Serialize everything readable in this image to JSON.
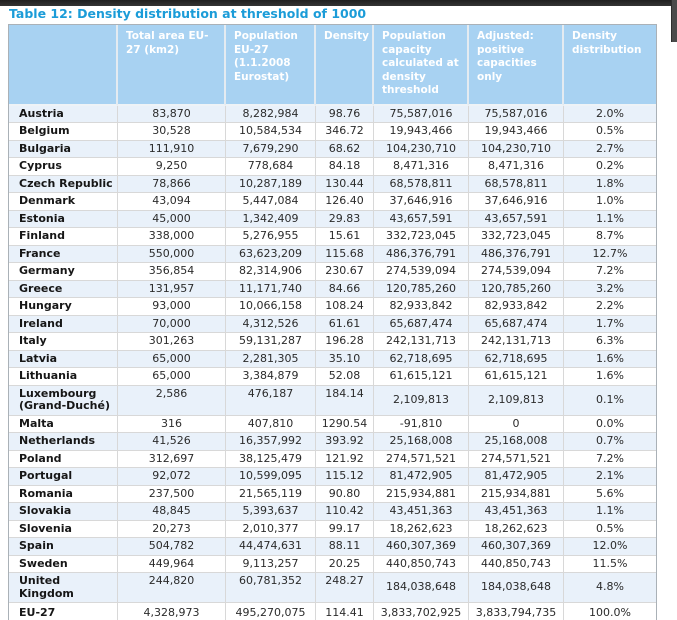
{
  "page": {
    "title": "Table 12: Density distribution at threshold of 1000"
  },
  "colors": {
    "title": "#1b9cd8",
    "header_bg": "#a8d2f2",
    "header_text": "#ffffff",
    "row_alt": "#e9f1fa",
    "border": "#d8d8d8",
    "text": "#2b2b2b",
    "top_bar": "#2a2a2a"
  },
  "table": {
    "columns": [
      "",
      "Total area EU-27 (km2)",
      "Population EU-27 (1.1.2008 Eurostat)",
      "Density",
      "Population capacity calculated at density threshold",
      "Adjusted: positive capacities only",
      "Density distribution"
    ],
    "rows": [
      {
        "country": "Austria",
        "values": [
          "83,870",
          "8,282,984",
          "98.76",
          "75,587,016",
          "75,587,016",
          "2.0%"
        ]
      },
      {
        "country": "Belgium",
        "values": [
          "30,528",
          "10,584,534",
          "346.72",
          "19,943,466",
          "19,943,466",
          "0.5%"
        ]
      },
      {
        "country": "Bulgaria",
        "values": [
          "111,910",
          "7,679,290",
          "68.62",
          "104,230,710",
          "104,230,710",
          "2.7%"
        ]
      },
      {
        "country": "Cyprus",
        "values": [
          "9,250",
          "778,684",
          "84.18",
          "8,471,316",
          "8,471,316",
          "0.2%"
        ]
      },
      {
        "country": "Czech Republic",
        "values": [
          "78,866",
          "10,287,189",
          "130.44",
          "68,578,811",
          "68,578,811",
          "1.8%"
        ]
      },
      {
        "country": "Denmark",
        "values": [
          "43,094",
          "5,447,084",
          "126.40",
          "37,646,916",
          "37,646,916",
          "1.0%"
        ]
      },
      {
        "country": "Estonia",
        "values": [
          "45,000",
          "1,342,409",
          "29.83",
          "43,657,591",
          "43,657,591",
          "1.1%"
        ]
      },
      {
        "country": "Finland",
        "values": [
          "338,000",
          "5,276,955",
          "15.61",
          "332,723,045",
          "332,723,045",
          "8.7%"
        ]
      },
      {
        "country": "France",
        "values": [
          "550,000",
          "63,623,209",
          "115.68",
          "486,376,791",
          "486,376,791",
          "12.7%"
        ]
      },
      {
        "country": "Germany",
        "values": [
          "356,854",
          "82,314,906",
          "230.67",
          "274,539,094",
          "274,539,094",
          "7.2%"
        ]
      },
      {
        "country": "Greece",
        "values": [
          "131,957",
          "11,171,740",
          "84.66",
          "120,785,260",
          "120,785,260",
          "3.2%"
        ]
      },
      {
        "country": "Hungary",
        "values": [
          "93,000",
          "10,066,158",
          "108.24",
          "82,933,842",
          "82,933,842",
          "2.2%"
        ]
      },
      {
        "country": "Ireland",
        "values": [
          "70,000",
          "4,312,526",
          "61.61",
          "65,687,474",
          "65,687,474",
          "1.7%"
        ]
      },
      {
        "country": "Italy",
        "values": [
          "301,263",
          "59,131,287",
          "196.28",
          "242,131,713",
          "242,131,713",
          "6.3%"
        ]
      },
      {
        "country": "Latvia",
        "values": [
          "65,000",
          "2,281,305",
          "35.10",
          "62,718,695",
          "62,718,695",
          "1.6%"
        ]
      },
      {
        "country": "Lithuania",
        "values": [
          "65,000",
          "3,384,879",
          "52.08",
          "61,615,121",
          "61,615,121",
          "1.6%"
        ]
      },
      {
        "country": "Luxembourg (Grand-Duché)",
        "values": [
          "2,586",
          "476,187",
          "184.14",
          "2,109,813",
          "2,109,813",
          "0.1%"
        ]
      },
      {
        "country": "Malta",
        "values": [
          "316",
          "407,810",
          "1290.54",
          "-91,810",
          "0",
          "0.0%"
        ]
      },
      {
        "country": "Netherlands",
        "values": [
          "41,526",
          "16,357,992",
          "393.92",
          "25,168,008",
          "25,168,008",
          "0.7%"
        ]
      },
      {
        "country": "Poland",
        "values": [
          "312,697",
          "38,125,479",
          "121.92",
          "274,571,521",
          "274,571,521",
          "7.2%"
        ]
      },
      {
        "country": "Portugal",
        "values": [
          "92,072",
          "10,599,095",
          "115.12",
          "81,472,905",
          "81,472,905",
          "2.1%"
        ]
      },
      {
        "country": "Romania",
        "values": [
          "237,500",
          "21,565,119",
          "90.80",
          "215,934,881",
          "215,934,881",
          "5.6%"
        ]
      },
      {
        "country": "Slovakia",
        "values": [
          "48,845",
          "5,393,637",
          "110.42",
          "43,451,363",
          "43,451,363",
          "1.1%"
        ]
      },
      {
        "country": "Slovenia",
        "values": [
          "20,273",
          "2,010,377",
          "99.17",
          "18,262,623",
          "18,262,623",
          "0.5%"
        ]
      },
      {
        "country": "Spain",
        "values": [
          "504,782",
          "44,474,631",
          "88.11",
          "460,307,369",
          "460,307,369",
          "12.0%"
        ]
      },
      {
        "country": "Sweden",
        "values": [
          "449,964",
          "9,113,257",
          "20.25",
          "440,850,743",
          "440,850,743",
          "11.5%"
        ]
      },
      {
        "country": "United Kingdom",
        "values": [
          "244,820",
          "60,781,352",
          "248.27",
          "184,038,648",
          "184,038,648",
          "4.8%"
        ]
      },
      {
        "country": "EU-27",
        "total": true,
        "values": [
          "4,328,973",
          "495,270,075",
          "114.41",
          "3,833,702,925",
          "3,833,794,735",
          "100.0%"
        ]
      }
    ]
  }
}
